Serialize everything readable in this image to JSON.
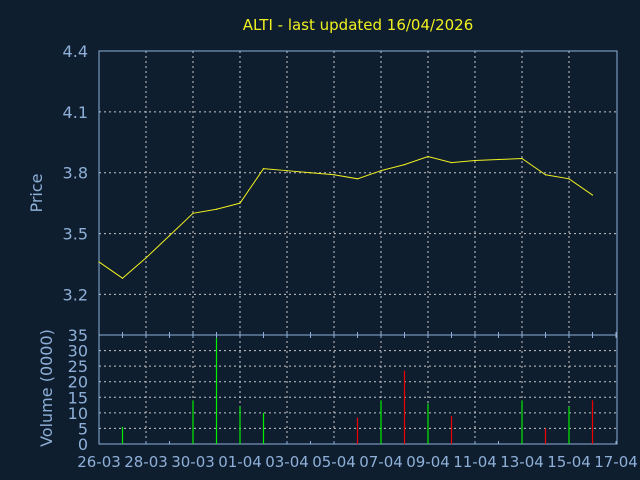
{
  "chart_data": [
    {
      "type": "line",
      "title": "ALTI - last updated 16/04/2026",
      "ylabel": "Price",
      "ylim": [
        3.0,
        4.4
      ],
      "yticks": [
        "3.2",
        "3.5",
        "3.8",
        "4.1",
        "4.4"
      ],
      "grid": true,
      "x": [
        "26-03",
        "27-03",
        "28-03",
        "29-03",
        "30-03",
        "31-03",
        "01-04",
        "02-04",
        "03-04",
        "04-04",
        "05-04",
        "06-04",
        "07-04",
        "08-04",
        "09-04",
        "10-04",
        "11-04",
        "12-04",
        "13-04",
        "14-04",
        "15-04",
        "16-04"
      ],
      "values": [
        3.36,
        3.28,
        3.38,
        3.49,
        3.6,
        3.62,
        3.65,
        3.82,
        3.81,
        3.8,
        3.79,
        3.77,
        3.81,
        3.84,
        3.88,
        3.85,
        3.86,
        3.865,
        3.87,
        3.79,
        3.77,
        3.69
      ],
      "line_color": "#f0f020"
    },
    {
      "type": "bar",
      "ylabel": "Volume (0000)",
      "ylim": [
        0,
        35
      ],
      "yticks": [
        "0",
        "5",
        "10",
        "15",
        "20",
        "25",
        "30",
        "35"
      ],
      "grid": true,
      "xticks": [
        "26-03",
        "28-03",
        "30-03",
        "01-04",
        "03-04",
        "05-04",
        "07-04",
        "09-04",
        "11-04",
        "13-04",
        "15-04",
        "17-04"
      ],
      "bars": [
        {
          "date": "27-03",
          "value": 5.5,
          "direction": "up"
        },
        {
          "date": "30-03",
          "value": 14,
          "direction": "up"
        },
        {
          "date": "31-03",
          "value": 34,
          "direction": "up"
        },
        {
          "date": "01-04",
          "value": 12,
          "direction": "up"
        },
        {
          "date": "02-04",
          "value": 10,
          "direction": "up"
        },
        {
          "date": "06-04",
          "value": 8.5,
          "direction": "down"
        },
        {
          "date": "07-04",
          "value": 14,
          "direction": "up"
        },
        {
          "date": "08-04",
          "value": 23.5,
          "direction": "down"
        },
        {
          "date": "09-04",
          "value": 13,
          "direction": "up"
        },
        {
          "date": "10-04",
          "value": 9,
          "direction": "down"
        },
        {
          "date": "13-04",
          "value": 14,
          "direction": "up"
        },
        {
          "date": "14-04",
          "value": 5,
          "direction": "down"
        },
        {
          "date": "15-04",
          "value": 12,
          "direction": "up"
        },
        {
          "date": "16-04",
          "value": 14,
          "direction": "down"
        }
      ],
      "up_color": "#00ee00",
      "down_color": "#ee0000"
    }
  ],
  "colors": {
    "background": "#0f1e2f",
    "axis": "#8eb0d8",
    "grid": "#c8c8c8",
    "title": "#f0f020"
  }
}
